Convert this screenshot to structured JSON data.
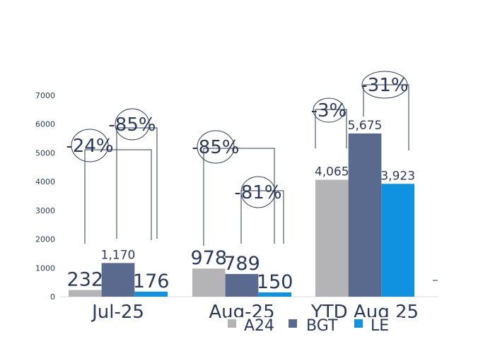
{
  "chart_data": {
    "type": "bar",
    "categories": [
      "Jul-25",
      "Aug-25",
      "YTD Aug 25"
    ],
    "series": [
      {
        "name": "A24",
        "values": [
          232,
          978,
          4065
        ],
        "labels": [
          "232",
          "978",
          "4,065"
        ]
      },
      {
        "name": "BGT",
        "values": [
          1170,
          789,
          5675
        ],
        "labels": [
          "1,170",
          "789",
          "5,675"
        ]
      },
      {
        "name": "LE",
        "values": [
          176,
          150,
          3923
        ],
        "labels": [
          "176",
          "150",
          "3,923"
        ]
      }
    ],
    "ylim": [
      0,
      7000
    ],
    "yticks": [
      0,
      1000,
      2000,
      3000,
      4000,
      5000,
      6000,
      7000
    ],
    "ytick_labels": [
      "0",
      "1000",
      "2000",
      "3000",
      "4000",
      "5000",
      "6000",
      "7000"
    ],
    "annotations": [
      {
        "text": "-24%",
        "category": "Jul-25",
        "from": "A24",
        "to": "LE"
      },
      {
        "text": "-85%",
        "category": "Jul-25",
        "from": "BGT",
        "to": "LE"
      },
      {
        "text": "-85%",
        "category": "Aug-25",
        "from": "A24",
        "to": "LE"
      },
      {
        "text": "-81%",
        "category": "Aug-25",
        "from": "BGT",
        "to": "LE"
      },
      {
        "text": "-3%",
        "category": "YTD Aug 25",
        "from": "A24",
        "to": "LE"
      },
      {
        "text": "-31%",
        "category": "YTD Aug 25",
        "from": "BGT",
        "to": "LE"
      }
    ],
    "legend_position": "bottom",
    "grid": false,
    "colors": {
      "A24": "#b4b4b6",
      "BGT": "#5a6a8e",
      "LE": "#1192e0",
      "text": "#2b3a5c"
    }
  }
}
